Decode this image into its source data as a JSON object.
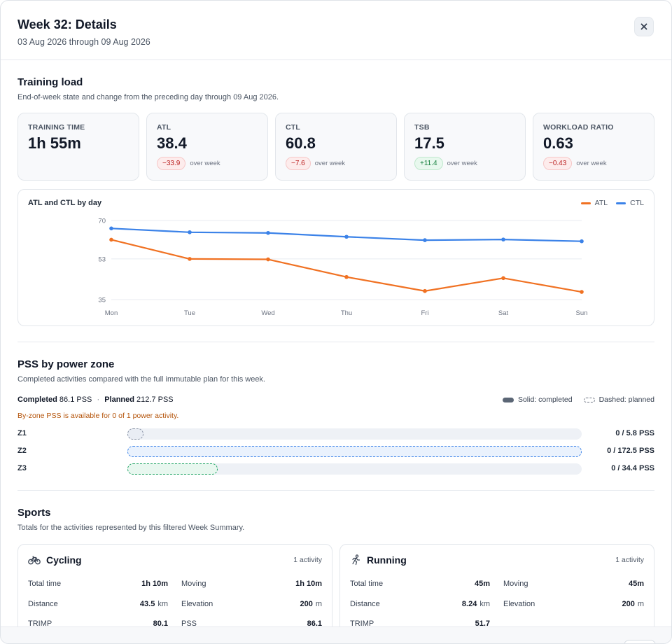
{
  "header": {
    "title": "Week 32: Details",
    "subtitle": "03 Aug 2026 through 09 Aug 2026",
    "close_icon": "close-icon"
  },
  "training_load": {
    "title": "Training load",
    "description": "End-of-week state and change from the preceding day through 09 Aug 2026.",
    "kpis": [
      {
        "label": "TRAINING TIME",
        "value": "1h 55m"
      },
      {
        "label": "ATL",
        "value": "38.4",
        "delta": "−33.9",
        "delta_caption": "over week",
        "delta_tone": "neg"
      },
      {
        "label": "CTL",
        "value": "60.8",
        "delta": "−7.6",
        "delta_caption": "over week",
        "delta_tone": "neg"
      },
      {
        "label": "TSB",
        "value": "17.5",
        "delta": "+11.4",
        "delta_caption": "over week",
        "delta_tone": "pos"
      },
      {
        "label": "WORKLOAD RATIO",
        "value": "0.63",
        "delta": "−0.43",
        "delta_caption": "over week",
        "delta_tone": "neg"
      }
    ]
  },
  "chart_data": {
    "type": "line",
    "title": "ATL and CTL by day",
    "categories": [
      "Mon",
      "Tue",
      "Wed",
      "Thu",
      "Fri",
      "Sat",
      "Sun"
    ],
    "series": [
      {
        "name": "ATL",
        "color": "#f07122",
        "values": [
          61.5,
          53.0,
          52.8,
          45.0,
          38.8,
          44.5,
          38.4
        ]
      },
      {
        "name": "CTL",
        "color": "#3b82e8",
        "values": [
          66.5,
          64.8,
          64.5,
          62.8,
          61.3,
          61.6,
          60.8
        ]
      }
    ],
    "yticks": [
      70,
      53,
      35
    ],
    "ylim": [
      35,
      70
    ],
    "grid": true,
    "legend_position": "top-right"
  },
  "pss": {
    "title": "PSS by power zone",
    "description": "Completed activities compared with the full immutable plan for this week.",
    "completed_label": "Completed",
    "completed_value": "86.1 PSS",
    "separator": "·",
    "planned_label": "Planned",
    "planned_value": "212.7 PSS",
    "legend_solid": "Solid: completed",
    "legend_dashed": "Dashed: planned",
    "note": "By-zone PSS is available for 0 of 1 power activity.",
    "zones": [
      {
        "label": "Z1",
        "completed": 0,
        "planned": 5.8,
        "text": "0 / 5.8 PSS",
        "color": "#8b95a7",
        "fill": "#e9edf4"
      },
      {
        "label": "Z2",
        "completed": 0,
        "planned": 172.5,
        "text": "0 / 172.5 PSS",
        "color": "#3b82e8",
        "fill": "#eaf2fd"
      },
      {
        "label": "Z3",
        "completed": 0,
        "planned": 34.4,
        "text": "0 / 34.4 PSS",
        "color": "#22a565",
        "fill": "#e8f7ef"
      }
    ]
  },
  "sports": {
    "title": "Sports",
    "description": "Totals for the activities represented by this filtered Week Summary.",
    "cards": [
      {
        "name": "Cycling",
        "icon": "bike-icon",
        "count": "1 activity",
        "stats": [
          {
            "label": "Total time",
            "value": "1h 10m",
            "unit": ""
          },
          {
            "label": "Moving",
            "value": "1h 10m",
            "unit": ""
          },
          {
            "label": "Distance",
            "value": "43.5",
            "unit": "km"
          },
          {
            "label": "Elevation",
            "value": "200",
            "unit": "m"
          },
          {
            "label": "TRIMP",
            "value": "80.1",
            "unit": ""
          },
          {
            "label": "PSS",
            "value": "86.1",
            "unit": ""
          }
        ]
      },
      {
        "name": "Running",
        "icon": "runner-icon",
        "count": "1 activity",
        "stats": [
          {
            "label": "Total time",
            "value": "45m",
            "unit": ""
          },
          {
            "label": "Moving",
            "value": "45m",
            "unit": ""
          },
          {
            "label": "Distance",
            "value": "8.24",
            "unit": "km"
          },
          {
            "label": "Elevation",
            "value": "200",
            "unit": "m"
          },
          {
            "label": "TRIMP",
            "value": "51.7",
            "unit": ""
          }
        ]
      }
    ]
  }
}
